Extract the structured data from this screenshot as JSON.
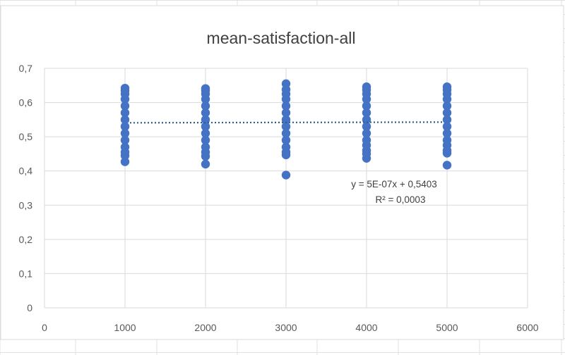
{
  "chart_data": {
    "type": "scatter",
    "title": "mean-satisfaction-all",
    "xlabel": "",
    "ylabel": "",
    "xlim": [
      0,
      6000
    ],
    "ylim": [
      0,
      0.7
    ],
    "x_ticks": [
      "0",
      "1000",
      "2000",
      "3000",
      "4000",
      "5000",
      "6000"
    ],
    "y_ticks": [
      "0",
      "0,1",
      "0,2",
      "0,3",
      "0,4",
      "0,5",
      "0,6",
      "0,7"
    ],
    "grid": true,
    "legend": "none",
    "marker_color": "#4472C4",
    "trendline": {
      "style": "dotted",
      "color": "#2E5E8E",
      "slope": 5e-07,
      "intercept": 0.5403,
      "x_range": [
        1000,
        5000
      ],
      "equation": "y = 5E-07x + 0,5403",
      "r_squared": "R² = 0,0003"
    },
    "series": [
      {
        "points": [
          [
            1000,
            0.427
          ],
          [
            1000,
            0.445
          ],
          [
            1000,
            0.455
          ],
          [
            1000,
            0.47
          ],
          [
            1000,
            0.49
          ],
          [
            1000,
            0.51
          ],
          [
            1000,
            0.53
          ],
          [
            1000,
            0.55
          ],
          [
            1000,
            0.57
          ],
          [
            1000,
            0.59
          ],
          [
            1000,
            0.61
          ],
          [
            1000,
            0.625
          ],
          [
            1000,
            0.635
          ],
          [
            1000,
            0.642
          ],
          [
            2000,
            0.42
          ],
          [
            2000,
            0.443
          ],
          [
            2000,
            0.455
          ],
          [
            2000,
            0.47
          ],
          [
            2000,
            0.49
          ],
          [
            2000,
            0.51
          ],
          [
            2000,
            0.53
          ],
          [
            2000,
            0.55
          ],
          [
            2000,
            0.57
          ],
          [
            2000,
            0.59
          ],
          [
            2000,
            0.61
          ],
          [
            2000,
            0.625
          ],
          [
            2000,
            0.635
          ],
          [
            2000,
            0.641
          ],
          [
            3000,
            0.388
          ],
          [
            3000,
            0.447
          ],
          [
            3000,
            0.455
          ],
          [
            3000,
            0.47
          ],
          [
            3000,
            0.49
          ],
          [
            3000,
            0.51
          ],
          [
            3000,
            0.53
          ],
          [
            3000,
            0.55
          ],
          [
            3000,
            0.57
          ],
          [
            3000,
            0.59
          ],
          [
            3000,
            0.61
          ],
          [
            3000,
            0.625
          ],
          [
            3000,
            0.638
          ],
          [
            3000,
            0.655
          ],
          [
            4000,
            0.437
          ],
          [
            4000,
            0.45
          ],
          [
            4000,
            0.46
          ],
          [
            4000,
            0.475
          ],
          [
            4000,
            0.49
          ],
          [
            4000,
            0.51
          ],
          [
            4000,
            0.53
          ],
          [
            4000,
            0.55
          ],
          [
            4000,
            0.57
          ],
          [
            4000,
            0.59
          ],
          [
            4000,
            0.61
          ],
          [
            4000,
            0.625
          ],
          [
            4000,
            0.637
          ],
          [
            4000,
            0.646
          ],
          [
            5000,
            0.417
          ],
          [
            5000,
            0.452
          ],
          [
            5000,
            0.46
          ],
          [
            5000,
            0.475
          ],
          [
            5000,
            0.49
          ],
          [
            5000,
            0.51
          ],
          [
            5000,
            0.53
          ],
          [
            5000,
            0.55
          ],
          [
            5000,
            0.57
          ],
          [
            5000,
            0.59
          ],
          [
            5000,
            0.61
          ],
          [
            5000,
            0.625
          ],
          [
            5000,
            0.637
          ],
          [
            5000,
            0.646
          ]
        ]
      }
    ]
  }
}
